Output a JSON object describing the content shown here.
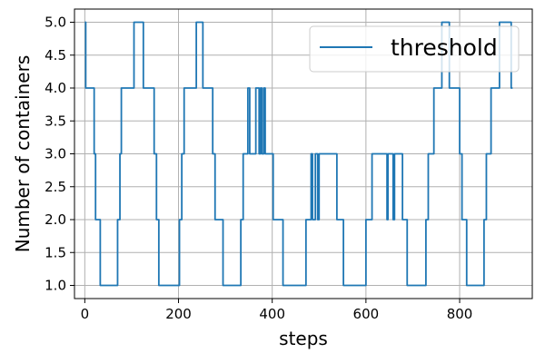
{
  "chart_data": {
    "type": "line",
    "xlabel": "steps",
    "ylabel": "Number of containers",
    "xlim": [
      -22,
      955
    ],
    "ylim": [
      0.8,
      5.2
    ],
    "xticks": [
      0,
      200,
      400,
      600,
      800
    ],
    "yticks": [
      1.0,
      1.5,
      2.0,
      2.5,
      3.0,
      3.5,
      4.0,
      4.5,
      5.0
    ],
    "xtick_labels": [
      "0",
      "200",
      "400",
      "600",
      "800"
    ],
    "ytick_labels": [
      "1.0",
      "1.5",
      "2.0",
      "2.5",
      "3.0",
      "3.5",
      "4.0",
      "4.5",
      "5.0"
    ],
    "grid": true,
    "legend_position": "top-right",
    "series": [
      {
        "name": "threshold",
        "color": "#1f77b4",
        "points": [
          [
            0,
            5
          ],
          [
            2,
            5
          ],
          [
            2,
            4
          ],
          [
            20,
            4
          ],
          [
            20,
            3
          ],
          [
            23,
            3
          ],
          [
            23,
            2
          ],
          [
            33,
            2
          ],
          [
            33,
            1
          ],
          [
            70,
            1
          ],
          [
            70,
            2
          ],
          [
            75,
            2
          ],
          [
            75,
            3
          ],
          [
            78,
            3
          ],
          [
            78,
            4
          ],
          [
            105,
            4
          ],
          [
            105,
            5
          ],
          [
            125,
            5
          ],
          [
            125,
            4
          ],
          [
            148,
            4
          ],
          [
            148,
            3
          ],
          [
            153,
            3
          ],
          [
            153,
            2
          ],
          [
            158,
            2
          ],
          [
            158,
            1
          ],
          [
            202,
            1
          ],
          [
            202,
            2
          ],
          [
            207,
            2
          ],
          [
            207,
            3
          ],
          [
            212,
            3
          ],
          [
            212,
            4
          ],
          [
            238,
            4
          ],
          [
            238,
            5
          ],
          [
            252,
            5
          ],
          [
            252,
            4
          ],
          [
            273,
            4
          ],
          [
            273,
            3
          ],
          [
            278,
            3
          ],
          [
            278,
            2
          ],
          [
            295,
            2
          ],
          [
            295,
            1
          ],
          [
            333,
            1
          ],
          [
            333,
            2
          ],
          [
            338,
            2
          ],
          [
            338,
            3
          ],
          [
            348,
            3
          ],
          [
            348,
            4
          ],
          [
            352,
            4
          ],
          [
            352,
            3
          ],
          [
            365,
            3
          ],
          [
            365,
            4
          ],
          [
            372,
            4
          ],
          [
            372,
            3
          ],
          [
            375,
            3
          ],
          [
            375,
            4
          ],
          [
            378,
            4
          ],
          [
            378,
            3
          ],
          [
            382,
            3
          ],
          [
            382,
            4
          ],
          [
            385,
            4
          ],
          [
            385,
            3
          ],
          [
            402,
            3
          ],
          [
            402,
            2
          ],
          [
            423,
            2
          ],
          [
            423,
            1
          ],
          [
            472,
            1
          ],
          [
            472,
            2
          ],
          [
            483,
            2
          ],
          [
            483,
            3
          ],
          [
            486,
            3
          ],
          [
            486,
            2
          ],
          [
            492,
            2
          ],
          [
            492,
            3
          ],
          [
            497,
            3
          ],
          [
            497,
            2
          ],
          [
            500,
            2
          ],
          [
            500,
            3
          ],
          [
            538,
            3
          ],
          [
            538,
            2
          ],
          [
            552,
            2
          ],
          [
            552,
            1
          ],
          [
            600,
            1
          ],
          [
            600,
            2
          ],
          [
            613,
            2
          ],
          [
            613,
            3
          ],
          [
            645,
            3
          ],
          [
            645,
            2
          ],
          [
            647,
            2
          ],
          [
            647,
            3
          ],
          [
            658,
            3
          ],
          [
            658,
            2
          ],
          [
            661,
            2
          ],
          [
            661,
            3
          ],
          [
            678,
            3
          ],
          [
            678,
            2
          ],
          [
            688,
            2
          ],
          [
            688,
            1
          ],
          [
            728,
            1
          ],
          [
            728,
            2
          ],
          [
            733,
            2
          ],
          [
            733,
            3
          ],
          [
            745,
            3
          ],
          [
            745,
            4
          ],
          [
            762,
            4
          ],
          [
            762,
            5
          ],
          [
            778,
            5
          ],
          [
            778,
            4
          ],
          [
            800,
            4
          ],
          [
            800,
            3
          ],
          [
            805,
            3
          ],
          [
            805,
            2
          ],
          [
            815,
            2
          ],
          [
            815,
            1
          ],
          [
            852,
            1
          ],
          [
            852,
            2
          ],
          [
            857,
            2
          ],
          [
            857,
            3
          ],
          [
            867,
            3
          ],
          [
            867,
            4
          ],
          [
            885,
            4
          ],
          [
            885,
            5
          ],
          [
            910,
            5
          ],
          [
            910,
            4
          ],
          [
            913,
            4
          ]
        ]
      }
    ]
  }
}
